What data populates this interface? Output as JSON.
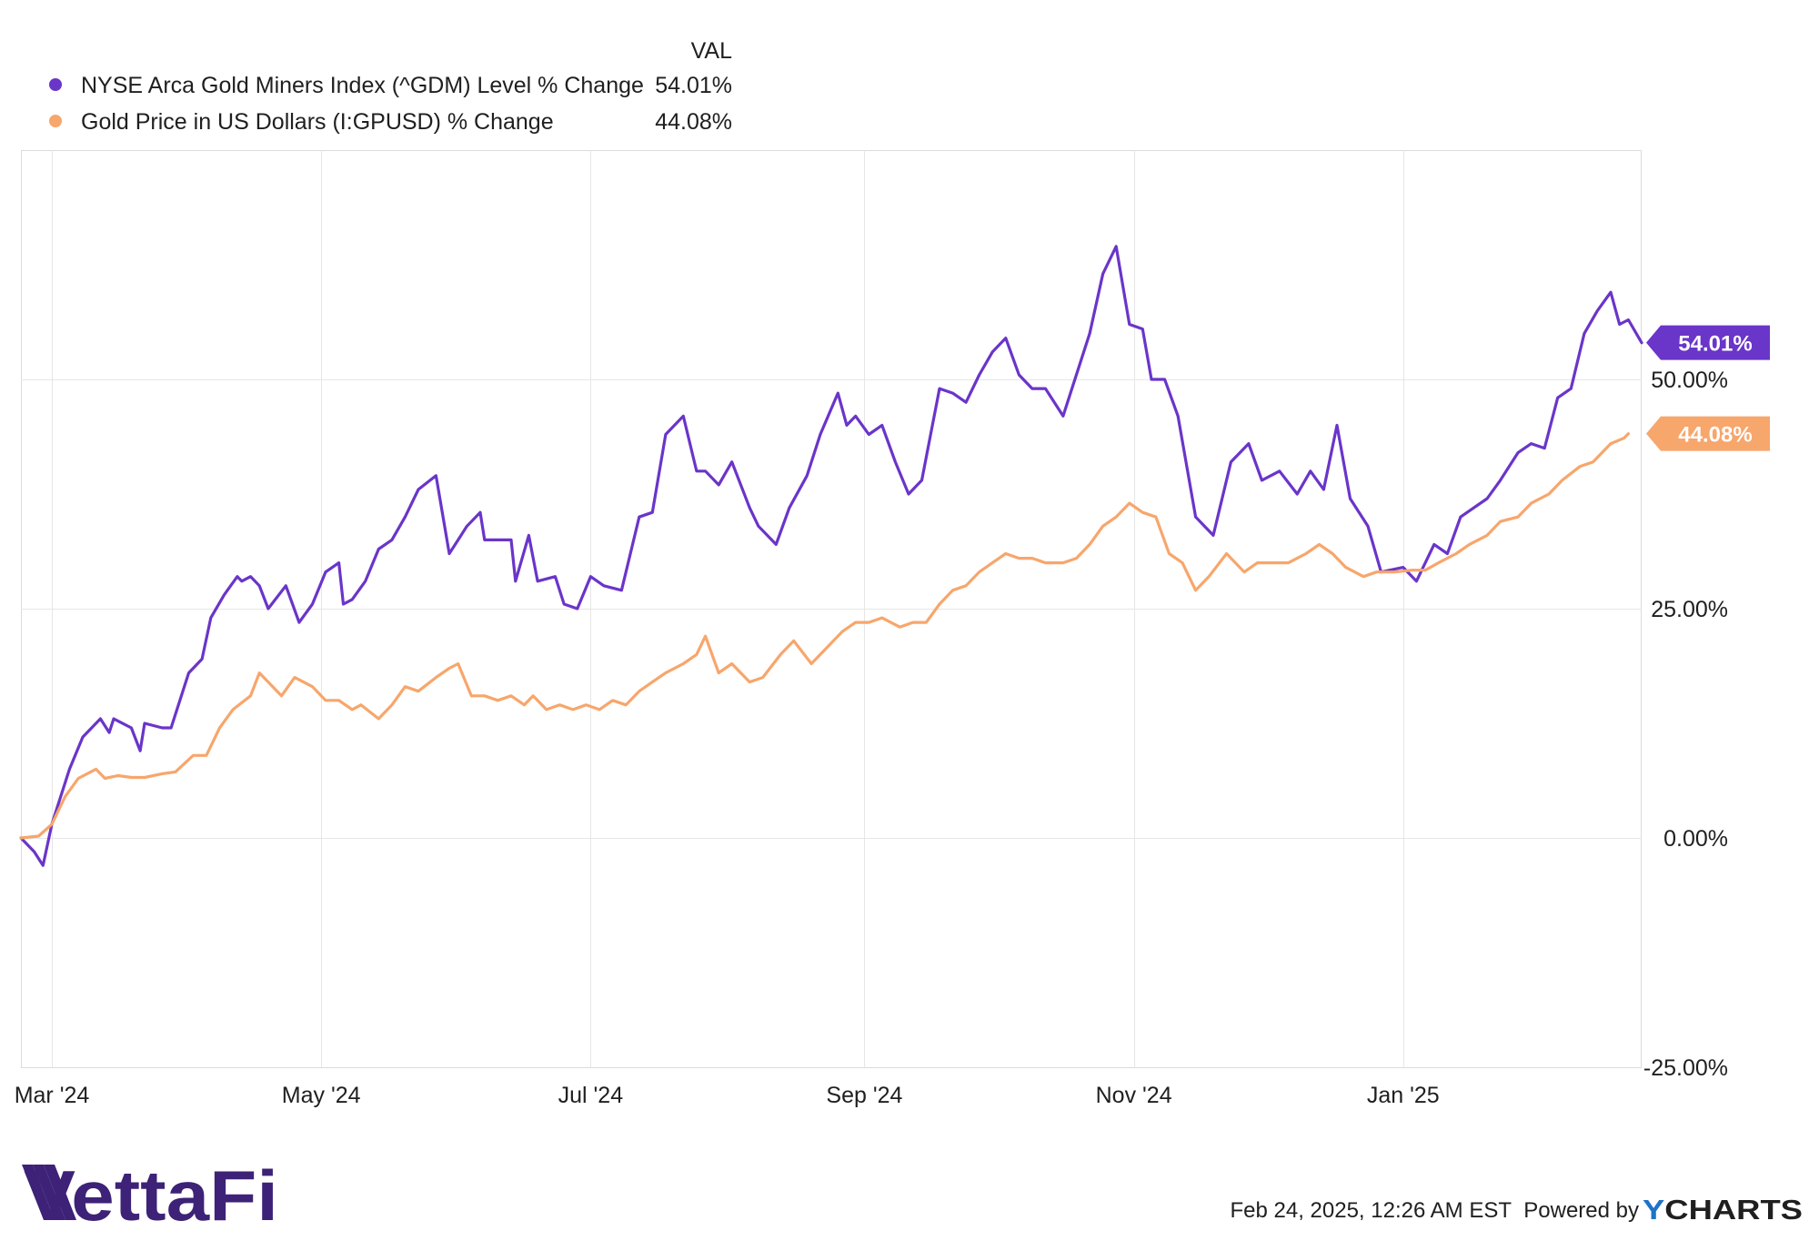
{
  "legend": {
    "value_header": "VAL",
    "items": [
      {
        "label": "NYSE Arca Gold Miners Index (^GDM) Level % Change",
        "value": "54.01%",
        "color": "#6a35c9"
      },
      {
        "label": "Gold Price in US Dollars (I:GPUSD) % Change",
        "value": "44.08%",
        "color": "#f7a66c"
      }
    ]
  },
  "chart_data": {
    "type": "line",
    "x_axis": {
      "ticks": [
        "Mar '24",
        "May '24",
        "Jul '24",
        "Sep '24",
        "Nov '24",
        "Jan '25"
      ],
      "range": [
        "2024-02-23",
        "2025-02-24"
      ]
    },
    "y_axis": {
      "ticks": [
        "-25.00%",
        "0.00%",
        "25.00%",
        "50.00%"
      ],
      "ylim": [
        -25,
        75
      ],
      "unit": "%",
      "grid": true,
      "position": "right"
    },
    "series": [
      {
        "name": "NYSE Arca Gold Miners Index (^GDM) Level % Change",
        "color": "#6a35c9",
        "end_label": "54.01%",
        "points": [
          [
            "2024-02-23",
            0
          ],
          [
            "2024-02-26",
            -1.5
          ],
          [
            "2024-02-28",
            -3
          ],
          [
            "2024-03-01",
            1.5
          ],
          [
            "2024-03-05",
            7.5
          ],
          [
            "2024-03-08",
            11
          ],
          [
            "2024-03-12",
            13
          ],
          [
            "2024-03-14",
            11.5
          ],
          [
            "2024-03-15",
            13
          ],
          [
            "2024-03-19",
            12
          ],
          [
            "2024-03-21",
            9.5
          ],
          [
            "2024-03-22",
            12.5
          ],
          [
            "2024-03-26",
            12
          ],
          [
            "2024-03-28",
            12
          ],
          [
            "2024-04-01",
            18
          ],
          [
            "2024-04-04",
            19.5
          ],
          [
            "2024-04-06",
            24
          ],
          [
            "2024-04-09",
            26.5
          ],
          [
            "2024-04-12",
            28.5
          ],
          [
            "2024-04-13",
            28
          ],
          [
            "2024-04-15",
            28.5
          ],
          [
            "2024-04-17",
            27.5
          ],
          [
            "2024-04-19",
            25
          ],
          [
            "2024-04-23",
            27.5
          ],
          [
            "2024-04-26",
            23.5
          ],
          [
            "2024-04-29",
            25.5
          ],
          [
            "2024-05-02",
            29
          ],
          [
            "2024-05-05",
            30
          ],
          [
            "2024-05-06",
            25.5
          ],
          [
            "2024-05-08",
            26
          ],
          [
            "2024-05-11",
            28
          ],
          [
            "2024-05-14",
            31.5
          ],
          [
            "2024-05-17",
            32.5
          ],
          [
            "2024-05-20",
            35
          ],
          [
            "2024-05-23",
            38
          ],
          [
            "2024-05-27",
            39.5
          ],
          [
            "2024-05-30",
            31
          ],
          [
            "2024-06-03",
            34
          ],
          [
            "2024-06-06",
            35.5
          ],
          [
            "2024-06-07",
            32.5
          ],
          [
            "2024-06-10",
            32.5
          ],
          [
            "2024-06-13",
            32.5
          ],
          [
            "2024-06-14",
            28
          ],
          [
            "2024-06-17",
            33
          ],
          [
            "2024-06-19",
            28
          ],
          [
            "2024-06-23",
            28.5
          ],
          [
            "2024-06-25",
            25.5
          ],
          [
            "2024-06-28",
            25
          ],
          [
            "2024-07-01",
            28.5
          ],
          [
            "2024-07-04",
            27.5
          ],
          [
            "2024-07-08",
            27
          ],
          [
            "2024-07-12",
            35
          ],
          [
            "2024-07-15",
            35.5
          ],
          [
            "2024-07-18",
            44
          ],
          [
            "2024-07-22",
            46
          ],
          [
            "2024-07-25",
            40
          ],
          [
            "2024-07-27",
            40
          ],
          [
            "2024-07-30",
            38.5
          ],
          [
            "2024-08-02",
            41
          ],
          [
            "2024-08-06",
            36
          ],
          [
            "2024-08-08",
            34
          ],
          [
            "2024-08-12",
            32
          ],
          [
            "2024-08-15",
            36
          ],
          [
            "2024-08-19",
            39.5
          ],
          [
            "2024-08-22",
            44
          ],
          [
            "2024-08-26",
            48.5
          ],
          [
            "2024-08-28",
            45
          ],
          [
            "2024-08-30",
            46
          ],
          [
            "2024-09-02",
            44
          ],
          [
            "2024-09-05",
            45
          ],
          [
            "2024-09-08",
            41
          ],
          [
            "2024-09-11",
            37.5
          ],
          [
            "2024-09-14",
            39
          ],
          [
            "2024-09-18",
            49
          ],
          [
            "2024-09-21",
            48.5
          ],
          [
            "2024-09-24",
            47.5
          ],
          [
            "2024-09-27",
            50.5
          ],
          [
            "2024-09-30",
            53
          ],
          [
            "2024-10-03",
            54.5
          ],
          [
            "2024-10-06",
            50.5
          ],
          [
            "2024-10-09",
            49
          ],
          [
            "2024-10-12",
            49
          ],
          [
            "2024-10-16",
            46
          ],
          [
            "2024-10-18",
            49
          ],
          [
            "2024-10-22",
            55
          ],
          [
            "2024-10-25",
            61.5
          ],
          [
            "2024-10-28",
            64.5
          ],
          [
            "2024-10-31",
            56
          ],
          [
            "2024-11-03",
            55.5
          ],
          [
            "2024-11-05",
            50
          ],
          [
            "2024-11-08",
            50
          ],
          [
            "2024-11-11",
            46
          ],
          [
            "2024-11-15",
            35
          ],
          [
            "2024-11-19",
            33
          ],
          [
            "2024-11-23",
            41
          ],
          [
            "2024-11-27",
            43
          ],
          [
            "2024-11-30",
            39
          ],
          [
            "2024-12-04",
            40
          ],
          [
            "2024-12-08",
            37.5
          ],
          [
            "2024-12-11",
            40
          ],
          [
            "2024-12-14",
            38
          ],
          [
            "2024-12-17",
            45
          ],
          [
            "2024-12-20",
            37
          ],
          [
            "2024-12-24",
            34
          ],
          [
            "2024-12-27",
            29
          ],
          [
            "2025-01-01",
            29.5
          ],
          [
            "2025-01-04",
            28
          ],
          [
            "2025-01-08",
            32
          ],
          [
            "2025-01-11",
            31
          ],
          [
            "2025-01-14",
            35
          ],
          [
            "2025-01-17",
            36
          ],
          [
            "2025-01-20",
            37
          ],
          [
            "2025-01-23",
            39
          ],
          [
            "2025-01-27",
            42
          ],
          [
            "2025-01-30",
            43
          ],
          [
            "2025-02-02",
            42.5
          ],
          [
            "2025-02-05",
            48
          ],
          [
            "2025-02-08",
            49
          ],
          [
            "2025-02-11",
            55
          ],
          [
            "2025-02-14",
            57.5
          ],
          [
            "2025-02-17",
            59.5
          ],
          [
            "2025-02-19",
            56
          ],
          [
            "2025-02-21",
            56.5
          ],
          [
            "2025-02-24",
            54
          ]
        ]
      },
      {
        "name": "Gold Price in US Dollars (I:GPUSD) % Change",
        "color": "#f7a66c",
        "end_label": "44.08%",
        "points": [
          [
            "2024-02-23",
            0
          ],
          [
            "2024-02-27",
            0.2
          ],
          [
            "2024-03-01",
            1.5
          ],
          [
            "2024-03-04",
            4.5
          ],
          [
            "2024-03-07",
            6.5
          ],
          [
            "2024-03-11",
            7.5
          ],
          [
            "2024-03-13",
            6.5
          ],
          [
            "2024-03-16",
            6.8
          ],
          [
            "2024-03-19",
            6.6
          ],
          [
            "2024-03-22",
            6.6
          ],
          [
            "2024-03-26",
            7
          ],
          [
            "2024-03-29",
            7.2
          ],
          [
            "2024-04-02",
            9
          ],
          [
            "2024-04-05",
            9
          ],
          [
            "2024-04-08",
            12
          ],
          [
            "2024-04-11",
            14
          ],
          [
            "2024-04-15",
            15.5
          ],
          [
            "2024-04-17",
            18
          ],
          [
            "2024-04-19",
            17
          ],
          [
            "2024-04-22",
            15.5
          ],
          [
            "2024-04-25",
            17.5
          ],
          [
            "2024-04-29",
            16.5
          ],
          [
            "2024-05-02",
            15
          ],
          [
            "2024-05-05",
            15
          ],
          [
            "2024-05-08",
            14
          ],
          [
            "2024-05-10",
            14.5
          ],
          [
            "2024-05-14",
            13
          ],
          [
            "2024-05-17",
            14.5
          ],
          [
            "2024-05-20",
            16.5
          ],
          [
            "2024-05-23",
            16
          ],
          [
            "2024-05-27",
            17.5
          ],
          [
            "2024-05-30",
            18.5
          ],
          [
            "2024-06-01",
            19
          ],
          [
            "2024-06-04",
            15.5
          ],
          [
            "2024-06-07",
            15.5
          ],
          [
            "2024-06-10",
            15
          ],
          [
            "2024-06-13",
            15.5
          ],
          [
            "2024-06-16",
            14.5
          ],
          [
            "2024-06-18",
            15.5
          ],
          [
            "2024-06-21",
            14
          ],
          [
            "2024-06-24",
            14.5
          ],
          [
            "2024-06-27",
            14
          ],
          [
            "2024-06-30",
            14.5
          ],
          [
            "2024-07-03",
            14
          ],
          [
            "2024-07-06",
            15
          ],
          [
            "2024-07-09",
            14.5
          ],
          [
            "2024-07-12",
            16
          ],
          [
            "2024-07-15",
            17
          ],
          [
            "2024-07-18",
            18
          ],
          [
            "2024-07-22",
            19
          ],
          [
            "2024-07-25",
            20
          ],
          [
            "2024-07-27",
            22
          ],
          [
            "2024-07-30",
            18
          ],
          [
            "2024-08-02",
            19
          ],
          [
            "2024-08-06",
            17
          ],
          [
            "2024-08-09",
            17.5
          ],
          [
            "2024-08-13",
            20
          ],
          [
            "2024-08-16",
            21.5
          ],
          [
            "2024-08-20",
            19
          ],
          [
            "2024-08-23",
            20.5
          ],
          [
            "2024-08-27",
            22.5
          ],
          [
            "2024-08-30",
            23.5
          ],
          [
            "2024-09-02",
            23.5
          ],
          [
            "2024-09-05",
            24
          ],
          [
            "2024-09-09",
            23
          ],
          [
            "2024-09-12",
            23.5
          ],
          [
            "2024-09-15",
            23.5
          ],
          [
            "2024-09-18",
            25.5
          ],
          [
            "2024-09-21",
            27
          ],
          [
            "2024-09-24",
            27.5
          ],
          [
            "2024-09-27",
            29
          ],
          [
            "2024-09-30",
            30
          ],
          [
            "2024-10-03",
            31
          ],
          [
            "2024-10-06",
            30.5
          ],
          [
            "2024-10-09",
            30.5
          ],
          [
            "2024-10-12",
            30
          ],
          [
            "2024-10-16",
            30
          ],
          [
            "2024-10-19",
            30.5
          ],
          [
            "2024-10-22",
            32
          ],
          [
            "2024-10-25",
            34
          ],
          [
            "2024-10-28",
            35
          ],
          [
            "2024-10-31",
            36.5
          ],
          [
            "2024-11-03",
            35.5
          ],
          [
            "2024-11-06",
            35
          ],
          [
            "2024-11-09",
            31
          ],
          [
            "2024-11-12",
            30
          ],
          [
            "2024-11-15",
            27
          ],
          [
            "2024-11-18",
            28.5
          ],
          [
            "2024-11-22",
            31
          ],
          [
            "2024-11-26",
            29
          ],
          [
            "2024-11-29",
            30
          ],
          [
            "2024-12-03",
            30
          ],
          [
            "2024-12-06",
            30
          ],
          [
            "2024-12-10",
            31
          ],
          [
            "2024-12-13",
            32
          ],
          [
            "2024-12-16",
            31
          ],
          [
            "2024-12-19",
            29.5
          ],
          [
            "2024-12-23",
            28.5
          ],
          [
            "2024-12-26",
            29
          ],
          [
            "2024-12-30",
            29
          ],
          [
            "2025-01-03",
            29.2
          ],
          [
            "2025-01-06",
            29.2
          ],
          [
            "2025-01-09",
            30
          ],
          [
            "2025-01-13",
            31
          ],
          [
            "2025-01-16",
            32
          ],
          [
            "2025-01-20",
            33
          ],
          [
            "2025-01-23",
            34.5
          ],
          [
            "2025-01-27",
            35
          ],
          [
            "2025-01-30",
            36.5
          ],
          [
            "2025-02-03",
            37.5
          ],
          [
            "2025-02-06",
            39
          ],
          [
            "2025-02-10",
            40.5
          ],
          [
            "2025-02-13",
            41
          ],
          [
            "2025-02-17",
            43
          ],
          [
            "2025-02-20",
            43.6
          ],
          [
            "2025-02-21",
            44.08
          ]
        ]
      }
    ]
  },
  "branding": {
    "logo_text": "VettaFi",
    "timestamp": "Feb 24, 2025, 12:26 AM EST",
    "powered_by": "Powered by",
    "ycharts": "YCHARTS"
  }
}
